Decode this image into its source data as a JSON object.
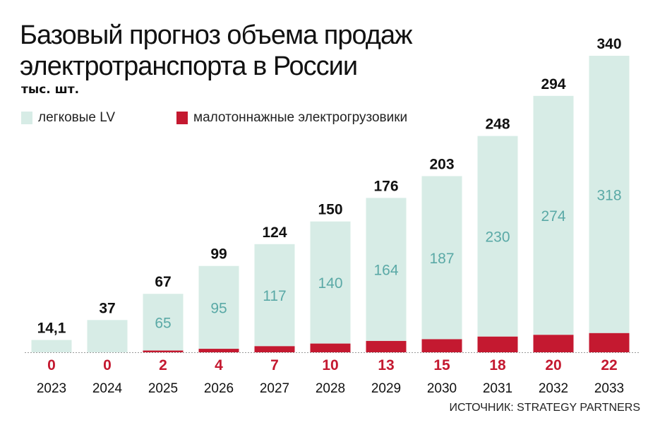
{
  "chart_data": {
    "type": "bar",
    "stacked": true,
    "title": "Базовый прогноз объема продаж электротранспорта в России",
    "unit": "тыс. шт.",
    "categories": [
      "2023",
      "2024",
      "2025",
      "2026",
      "2027",
      "2028",
      "2029",
      "2030",
      "2031",
      "2032",
      "2033"
    ],
    "series": [
      {
        "name": "малотоннажные электрогрузовики",
        "color": "#c41930",
        "values": [
          0,
          0,
          2,
          4,
          7,
          10,
          13,
          15,
          18,
          20,
          22
        ]
      },
      {
        "name": "легковые LV",
        "color": "#d7ece6",
        "values": [
          14.1,
          37,
          65,
          95,
          117,
          140,
          164,
          187,
          230,
          274,
          318
        ]
      }
    ],
    "totals": [
      "14,1",
      "37",
      "67",
      "99",
      "124",
      "150",
      "176",
      "203",
      "248",
      "294",
      "340"
    ],
    "lv_labels": [
      "",
      "",
      "65",
      "95",
      "117",
      "140",
      "164",
      "187",
      "230",
      "274",
      "318"
    ],
    "ylim": [
      0,
      340
    ],
    "grid": false,
    "legend": "top-left",
    "label_color_lv": "#5aa9a6",
    "source": "ИСТОЧНИК: STRATEGY PARTNERS"
  }
}
